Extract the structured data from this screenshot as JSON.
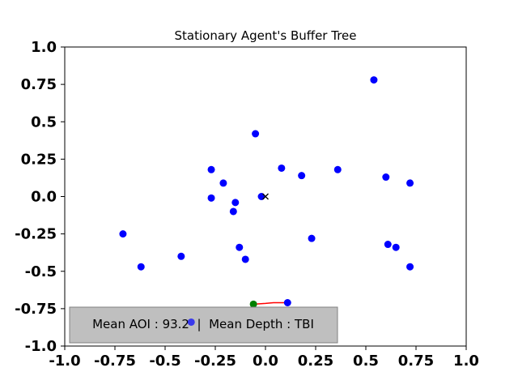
{
  "chart_data": {
    "type": "scatter",
    "title": "Stationary Agent's Buffer Tree",
    "xlabel": "",
    "ylabel": "",
    "xlim": [
      -1.0,
      1.0
    ],
    "ylim": [
      -1.0,
      1.0
    ],
    "xticks": [
      -1.0,
      -0.75,
      -0.5,
      -0.25,
      0.0,
      0.25,
      0.5,
      0.75,
      1.0
    ],
    "yticks": [
      -1.0,
      -0.75,
      -0.5,
      -0.25,
      0.0,
      0.25,
      0.5,
      0.75,
      1.0
    ],
    "xtick_labels": [
      "-1.0",
      "-0.75",
      "-0.5",
      "-0.25",
      "0.0",
      "0.25",
      "0.5",
      "0.75",
      "1.0"
    ],
    "ytick_labels": [
      "-1.0",
      "-0.75",
      "-0.5",
      "-0.25",
      "0.0",
      "0.25",
      "0.5",
      "0.75",
      "1.0"
    ],
    "grid": false,
    "series": [
      {
        "marker": "circle",
        "color": "#0000ff",
        "points": [
          [
            0.54,
            0.78
          ],
          [
            -0.05,
            0.42
          ],
          [
            0.08,
            0.19
          ],
          [
            0.18,
            0.14
          ],
          [
            0.36,
            0.18
          ],
          [
            0.6,
            0.13
          ],
          [
            0.72,
            0.09
          ],
          [
            -0.27,
            0.18
          ],
          [
            -0.21,
            0.09
          ],
          [
            -0.27,
            -0.01
          ],
          [
            -0.15,
            -0.04
          ],
          [
            -0.16,
            -0.1
          ],
          [
            -0.02,
            0.0
          ],
          [
            -0.71,
            -0.25
          ],
          [
            -0.62,
            -0.47
          ],
          [
            -0.42,
            -0.4
          ],
          [
            -0.13,
            -0.34
          ],
          [
            -0.1,
            -0.42
          ],
          [
            0.23,
            -0.28
          ],
          [
            0.61,
            -0.32
          ],
          [
            0.65,
            -0.34
          ],
          [
            0.72,
            -0.47
          ],
          [
            0.11,
            -0.71
          ],
          [
            -0.37,
            -0.84
          ]
        ]
      },
      {
        "marker": "circle",
        "color": "#008000",
        "points": [
          [
            -0.06,
            -0.72
          ]
        ]
      },
      {
        "marker": "x",
        "color": "#000000",
        "points": [
          [
            0.0,
            0.0
          ]
        ]
      }
    ],
    "trail": {
      "color": "#ff0000",
      "points": [
        [
          -0.06,
          -0.72
        ],
        [
          0.0,
          -0.715
        ],
        [
          0.04,
          -0.71
        ],
        [
          0.11,
          -0.71
        ]
      ]
    },
    "info_box": {
      "text": "Mean AOI : 93.2  |  Mean Depth : TBI",
      "background": "#bfbfbf",
      "border": "#808080"
    }
  }
}
